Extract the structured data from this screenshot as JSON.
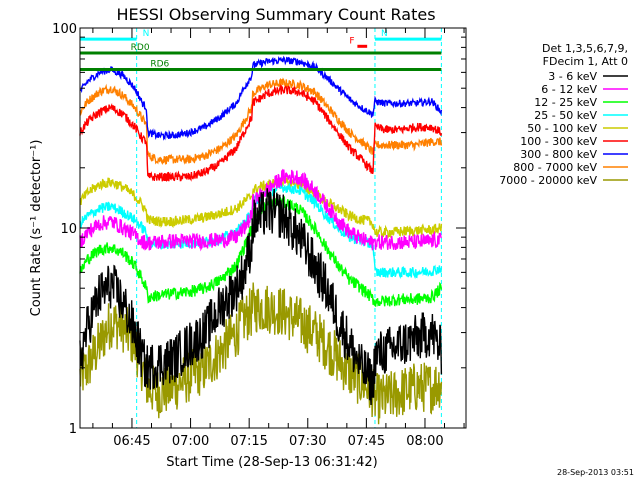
{
  "chart_data": {
    "type": "line",
    "title": "HESSI Observing Summary Count Rates",
    "xlabel": "Start Time (28-Sep-13 06:31:42)",
    "ylabel": "Count Rate (s⁻¹ detector⁻¹)",
    "y_scale": "log",
    "ylim": [
      1,
      100
    ],
    "xlim": [
      "06:31:42",
      "08:10:30"
    ],
    "x_ticks": [
      "06:45",
      "07:00",
      "07:15",
      "07:30",
      "07:45",
      "08:00"
    ],
    "y_ticks": [
      "1",
      "10",
      "100"
    ],
    "grid": false,
    "legend_position": "right",
    "legend_header": [
      "Det 1,3,5,6,7,9,",
      "FDecim 1, Att 0"
    ],
    "footer_date": "28-Sep-2013 03:51",
    "x_minutes": [
      0,
      2,
      5,
      8,
      11,
      14,
      16,
      17,
      17.3,
      20,
      24,
      28,
      32,
      36,
      40,
      42,
      44,
      44.2,
      48,
      52,
      56,
      60,
      63,
      66,
      69,
      72,
      74,
      75,
      75.5,
      78,
      82,
      86,
      90,
      92.5
    ],
    "series": [
      {
        "name": "3 - 6 keV",
        "color": "#000000",
        "values": [
          2.2,
          3.2,
          4.6,
          5.2,
          4.2,
          3,
          2.2,
          2,
          2,
          2.1,
          2.2,
          2.6,
          3,
          4,
          5,
          6,
          8.5,
          10.5,
          12.2,
          11.5,
          9,
          6.5,
          5,
          3.5,
          2.6,
          2,
          1.8,
          1.6,
          2.3,
          2.4,
          2.6,
          2.8,
          3,
          2.4
        ]
      },
      {
        "name": "6 - 12 keV",
        "color": "#ff00ff",
        "values": [
          8.5,
          9.5,
          10.5,
          10.8,
          10,
          9.2,
          8.6,
          8.4,
          8.4,
          8.5,
          8.6,
          8.6,
          8.6,
          8.7,
          9,
          10,
          11.5,
          13.5,
          15.5,
          18,
          18,
          15.5,
          13,
          11,
          9.5,
          8.8,
          8.5,
          8.4,
          8.5,
          8.5,
          8.5,
          8.5,
          8.6,
          8.7
        ]
      },
      {
        "name": "12 - 25 keV",
        "color": "#00ff00",
        "values": [
          6,
          7,
          7.8,
          8,
          7.5,
          6.5,
          5.5,
          5,
          4.5,
          4.6,
          4.7,
          4.8,
          5,
          5.5,
          6.5,
          8,
          10,
          11.5,
          13,
          13.5,
          12.5,
          10,
          8,
          6.5,
          5.5,
          5,
          4.6,
          4.4,
          4.3,
          4.3,
          4.4,
          4.4,
          4.5,
          5
        ]
      },
      {
        "name": "25 - 50 keV",
        "color": "#00ffff",
        "values": [
          10.5,
          11.5,
          12.5,
          12.8,
          12,
          11,
          10,
          9.5,
          8.5,
          8.3,
          8.3,
          8.4,
          8.5,
          8.8,
          9.5,
          10.5,
          12,
          13.5,
          15,
          16,
          15.5,
          13.5,
          11.5,
          10,
          9,
          8.6,
          8.3,
          8.2,
          6,
          6,
          6,
          6,
          6.1,
          6.3
        ]
      },
      {
        "name": "50 - 100 keV",
        "color": "#cccc00",
        "values": [
          13.5,
          15,
          16.5,
          17,
          16,
          14.5,
          13,
          12,
          11,
          10.8,
          10.8,
          11,
          11.3,
          11.8,
          12.5,
          13.5,
          14.5,
          15.5,
          16.5,
          17,
          16.5,
          15,
          13.5,
          12.5,
          11.5,
          11,
          10.8,
          10.5,
          9.5,
          9.5,
          9.6,
          9.7,
          9.8,
          10
        ]
      },
      {
        "name": "100 - 300 keV",
        "color": "#ff0000",
        "values": [
          30,
          34,
          38,
          40,
          37,
          32,
          28,
          27,
          18,
          18,
          18,
          18,
          19,
          21,
          25,
          30,
          36,
          42,
          47,
          49,
          48,
          43,
          36,
          30,
          25,
          22,
          20,
          19,
          32,
          31,
          31,
          32,
          32,
          30
        ]
      },
      {
        "name": "300 - 800 keV",
        "color": "#0000ff",
        "values": [
          48,
          54,
          60,
          62,
          58,
          50,
          42,
          40,
          30,
          29,
          29,
          30,
          32,
          36,
          42,
          50,
          58,
          65,
          68,
          69,
          68,
          64,
          57,
          50,
          44,
          40,
          38,
          37,
          43,
          42,
          42,
          42,
          43,
          38
        ]
      },
      {
        "name": "800 - 7000 keV",
        "color": "#ff8000",
        "values": [
          38,
          43,
          48,
          50,
          46,
          40,
          35,
          33,
          23,
          22,
          22,
          22,
          23,
          25,
          29,
          34,
          40,
          47,
          52,
          53,
          52,
          48,
          41,
          35,
          30,
          27,
          25,
          24,
          26,
          26,
          26,
          26,
          27,
          27
        ]
      },
      {
        "name": "7000 - 20000 keV",
        "color": "#999900",
        "values": [
          1.8,
          2,
          2.6,
          3.4,
          3.2,
          2.6,
          2,
          1.7,
          1.6,
          1.5,
          1.6,
          1.8,
          2,
          2.4,
          3,
          3.5,
          3.8,
          4,
          4,
          3.8,
          3.4,
          3,
          2.6,
          2.2,
          1.9,
          1.7,
          1.6,
          1.5,
          1.4,
          1.4,
          1.5,
          1.6,
          1.6,
          1.7
        ]
      }
    ],
    "annotations": [
      {
        "label": "N",
        "color": "#00ffff",
        "y_value": 88,
        "x_from": 0,
        "x_to": 14.5
      },
      {
        "label": "N",
        "color": "#00ffff",
        "y_value": 88,
        "x_from": 75.5,
        "x_to": 92.5
      },
      {
        "label": "RD0",
        "color": "#008000",
        "y_value": 75,
        "x_from": 0,
        "x_to": 92.5
      },
      {
        "label": "RD6",
        "color": "#008000",
        "y_value": 62,
        "x_from": 0,
        "x_to": 92.5
      },
      {
        "label": "F",
        "color": "#ff0000",
        "y_value": 81,
        "x_from": 71,
        "x_to": 73.5
      }
    ],
    "night_markers_minutes": [
      0,
      14.5,
      75.5,
      92.5
    ]
  }
}
